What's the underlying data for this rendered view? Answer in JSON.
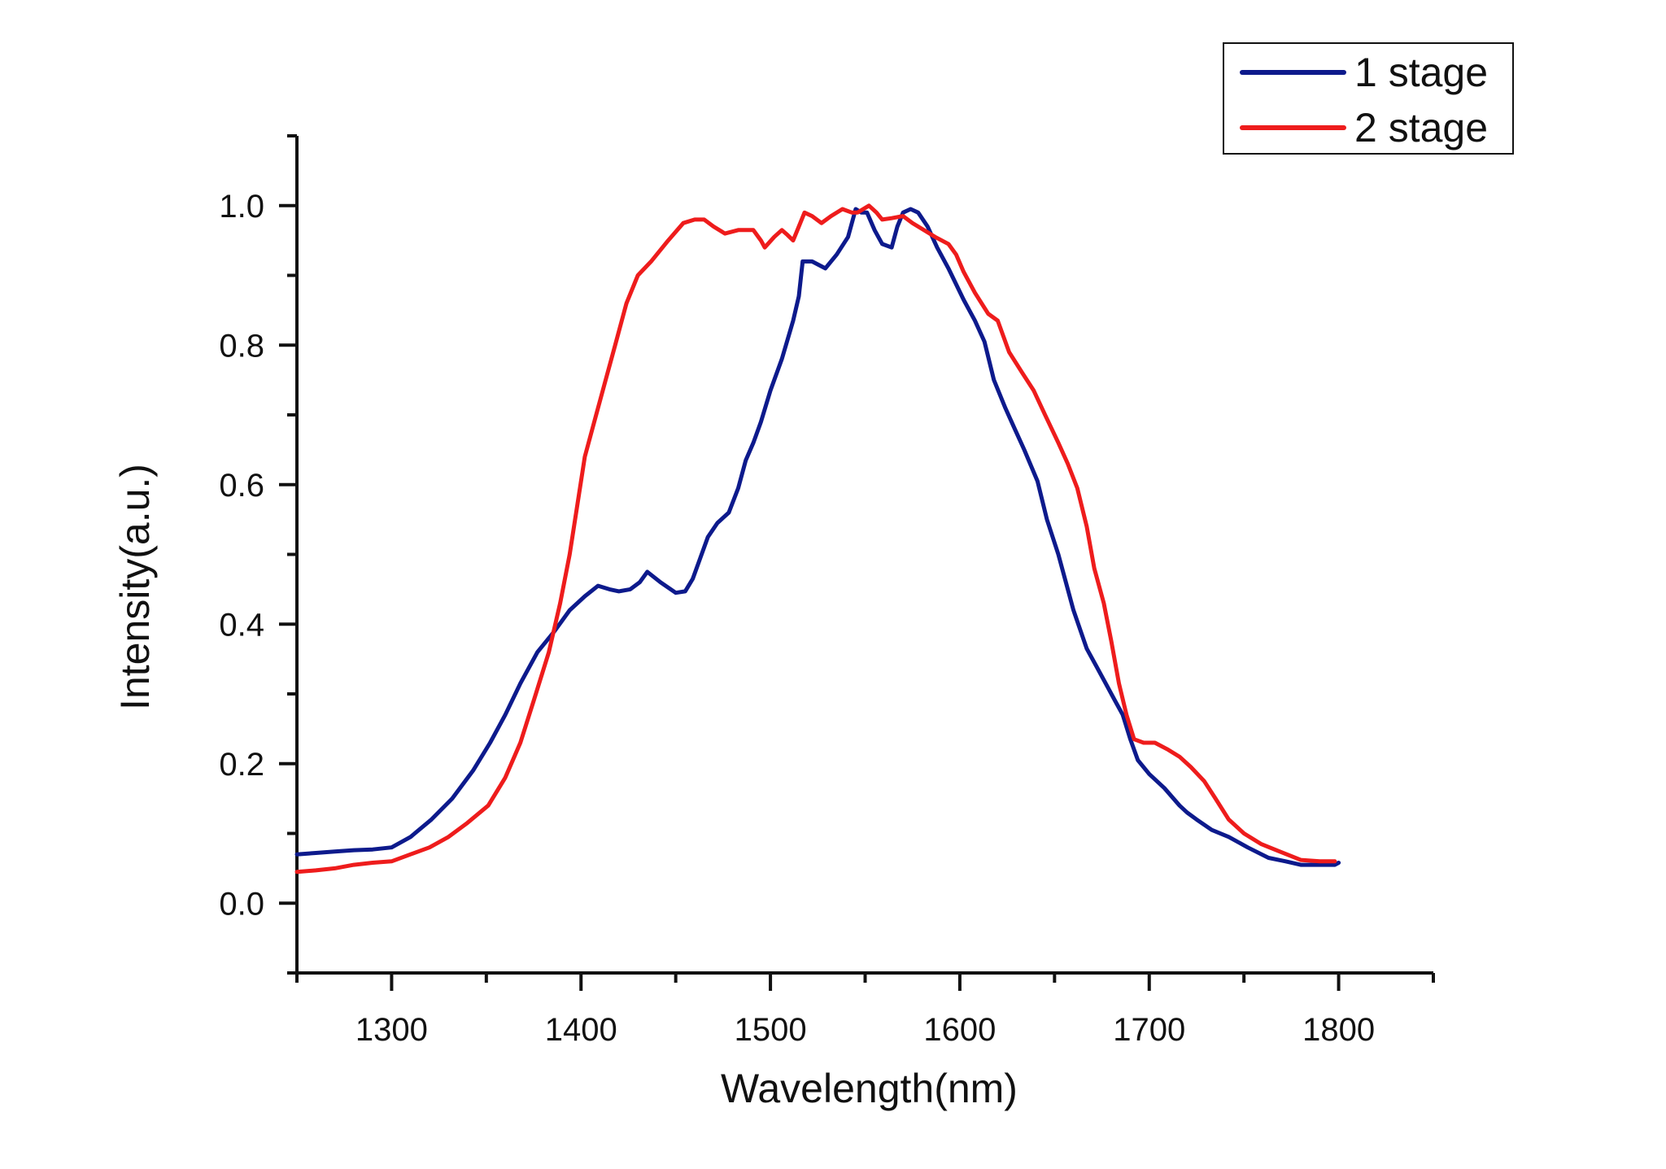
{
  "chart_data": {
    "type": "line",
    "title": "",
    "xlabel": "Wavelength(nm)",
    "ylabel": "Intensity(a.u.)",
    "xlim": [
      1250,
      1850
    ],
    "ylim": [
      -0.1,
      1.1
    ],
    "x_major_ticks": [
      1300,
      1400,
      1500,
      1600,
      1700,
      1800
    ],
    "x_tick_labels": [
      "1300",
      "1400",
      "1500",
      "1600",
      "1700",
      "1800"
    ],
    "x_minor_ticks": [
      1250,
      1350,
      1450,
      1550,
      1650,
      1750,
      1850
    ],
    "y_major_ticks": [
      0.0,
      0.2,
      0.4,
      0.6,
      0.8,
      1.0
    ],
    "y_tick_labels": [
      "0.0",
      "0.2",
      "0.4",
      "0.6",
      "0.8",
      "1.0"
    ],
    "y_minor_ticks": [
      -0.1,
      0.1,
      0.3,
      0.5,
      0.7,
      0.9,
      1.1
    ],
    "grid": false,
    "legend_position": "top-right",
    "series": [
      {
        "name": "1 stage",
        "color": "#0d1a8c",
        "x": [
          1250,
          1260,
          1270,
          1280,
          1290,
          1300,
          1310,
          1321,
          1332,
          1343,
          1352,
          1360,
          1368,
          1377,
          1386,
          1394,
          1402,
          1409,
          1415,
          1420,
          1426,
          1431,
          1435,
          1442,
          1450,
          1455,
          1459,
          1463,
          1467,
          1472,
          1478,
          1483,
          1487,
          1491,
          1495,
          1500,
          1506,
          1512,
          1515,
          1517,
          1522,
          1529,
          1535,
          1541,
          1545,
          1548,
          1551,
          1555,
          1559,
          1564,
          1567,
          1570,
          1574,
          1578,
          1583,
          1588,
          1594,
          1602,
          1608,
          1613,
          1618,
          1624,
          1629,
          1634,
          1641,
          1646,
          1652,
          1656,
          1660,
          1667,
          1672,
          1677,
          1682,
          1686,
          1690,
          1694,
          1700,
          1708,
          1716,
          1720,
          1725,
          1733,
          1742,
          1752,
          1763,
          1772,
          1780,
          1790,
          1798,
          1800
        ],
        "values": [
          0.07,
          0.072,
          0.074,
          0.076,
          0.077,
          0.08,
          0.095,
          0.12,
          0.15,
          0.19,
          0.23,
          0.27,
          0.315,
          0.36,
          0.39,
          0.42,
          0.44,
          0.455,
          0.45,
          0.447,
          0.45,
          0.46,
          0.475,
          0.46,
          0.445,
          0.447,
          0.465,
          0.495,
          0.525,
          0.545,
          0.56,
          0.595,
          0.635,
          0.66,
          0.69,
          0.735,
          0.78,
          0.835,
          0.87,
          0.92,
          0.92,
          0.91,
          0.93,
          0.955,
          0.995,
          0.99,
          0.99,
          0.965,
          0.945,
          0.94,
          0.97,
          0.99,
          0.995,
          0.99,
          0.97,
          0.94,
          0.91,
          0.865,
          0.835,
          0.805,
          0.75,
          0.71,
          0.68,
          0.65,
          0.605,
          0.55,
          0.5,
          0.46,
          0.42,
          0.365,
          0.34,
          0.315,
          0.29,
          0.27,
          0.235,
          0.205,
          0.185,
          0.165,
          0.14,
          0.13,
          0.12,
          0.105,
          0.095,
          0.08,
          0.065,
          0.06,
          0.055,
          0.055,
          0.055,
          0.058
        ]
      },
      {
        "name": "2 stage",
        "color": "#ee1c1c",
        "x": [
          1250,
          1260,
          1270,
          1280,
          1290,
          1300,
          1310,
          1320,
          1330,
          1340,
          1351,
          1360,
          1368,
          1375,
          1383,
          1389,
          1394,
          1398,
          1402,
          1407,
          1413,
          1418,
          1424,
          1430,
          1437,
          1446,
          1454,
          1460,
          1465,
          1470,
          1476,
          1483,
          1491,
          1495,
          1497,
          1502,
          1506,
          1509,
          1512,
          1515,
          1518,
          1522,
          1527,
          1532,
          1538,
          1543,
          1546,
          1549,
          1552,
          1556,
          1559,
          1564,
          1570,
          1575,
          1581,
          1587,
          1594,
          1598,
          1602,
          1608,
          1615,
          1620,
          1626,
          1633,
          1639,
          1645,
          1652,
          1657,
          1662,
          1667,
          1671,
          1676,
          1680,
          1684,
          1688,
          1692,
          1697,
          1703,
          1710,
          1716,
          1722,
          1729,
          1735,
          1742,
          1750,
          1759,
          1768,
          1780,
          1790,
          1798
        ],
        "values": [
          0.045,
          0.047,
          0.05,
          0.055,
          0.058,
          0.06,
          0.07,
          0.08,
          0.095,
          0.115,
          0.14,
          0.18,
          0.23,
          0.29,
          0.36,
          0.43,
          0.5,
          0.57,
          0.64,
          0.69,
          0.75,
          0.8,
          0.86,
          0.9,
          0.92,
          0.95,
          0.975,
          0.98,
          0.98,
          0.97,
          0.96,
          0.965,
          0.965,
          0.95,
          0.94,
          0.955,
          0.965,
          0.958,
          0.95,
          0.97,
          0.99,
          0.985,
          0.975,
          0.985,
          0.995,
          0.99,
          0.99,
          0.995,
          1.0,
          0.99,
          0.98,
          0.982,
          0.985,
          0.975,
          0.965,
          0.955,
          0.945,
          0.93,
          0.905,
          0.875,
          0.845,
          0.835,
          0.79,
          0.76,
          0.735,
          0.7,
          0.66,
          0.63,
          0.595,
          0.54,
          0.48,
          0.43,
          0.375,
          0.315,
          0.27,
          0.235,
          0.23,
          0.23,
          0.22,
          0.21,
          0.195,
          0.175,
          0.15,
          0.12,
          0.1,
          0.085,
          0.075,
          0.062,
          0.06,
          0.06
        ]
      }
    ]
  }
}
